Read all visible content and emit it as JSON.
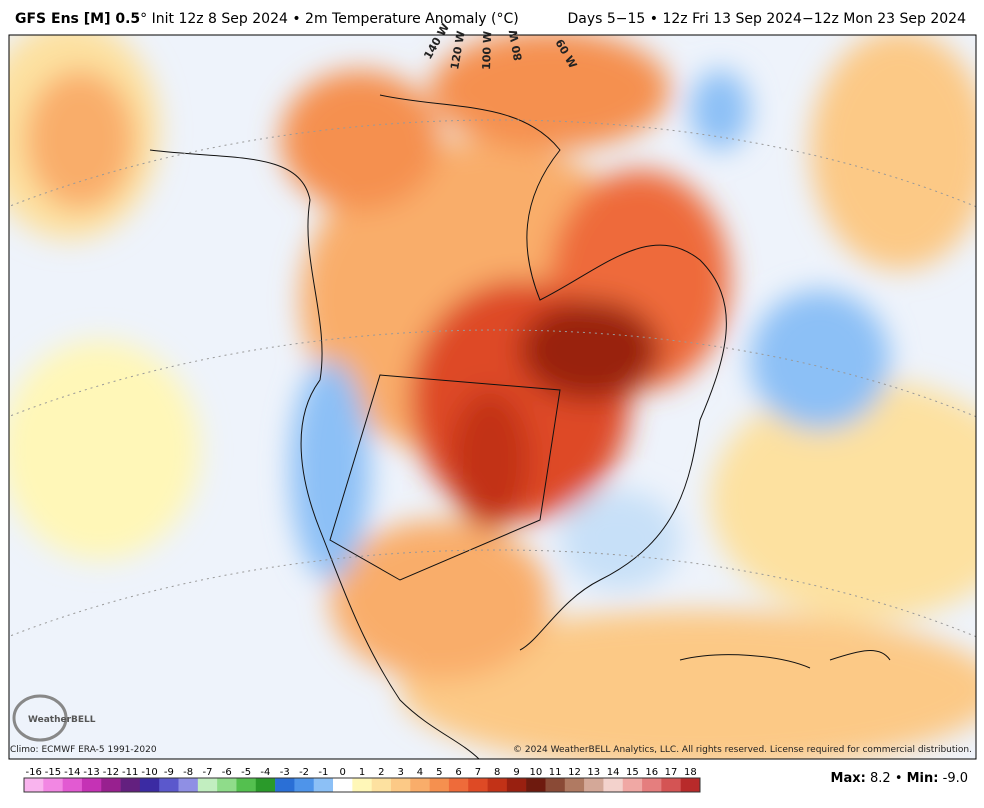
{
  "header": {
    "model": "GFS Ens [M] 0.5",
    "degree": "°",
    "init": "Init 12z 8 Sep 2024 • 2m Temperature Anomaly (°C)",
    "period": "Days 5−15 • 12z Fri 13 Sep 2024−12z Mon 23 Sep 2024"
  },
  "map": {
    "longitude_labels": [
      "140 W",
      "120 W",
      "100 W",
      "80 W",
      "60 W"
    ],
    "logo": "WeatherBELL"
  },
  "footer": {
    "climo": "Climo: ECMWF ERA-5 1991-2020",
    "copyright": "© 2024 WeatherBELL Analytics, LLC. All rights reserved. License required for commercial distribution.",
    "max_label": "Max:",
    "max": "8.2",
    "separator": "•",
    "min_label": "Min:",
    "min": "-9.0"
  },
  "colorbar": {
    "labels": [
      -16,
      -15,
      -14,
      -13,
      -12,
      -11,
      -10,
      -9,
      -8,
      -7,
      -6,
      -5,
      -4,
      -3,
      -2,
      -1,
      0,
      1,
      2,
      3,
      4,
      5,
      6,
      7,
      8,
      9,
      10,
      11,
      12,
      13,
      14,
      15,
      16,
      17,
      18
    ],
    "colors": [
      "#f9b4ee",
      "#f287e3",
      "#e25ad2",
      "#c532b5",
      "#98208f",
      "#63207f",
      "#3b2ba3",
      "#5b58cc",
      "#8f8fe4",
      "#c2eec0",
      "#8fdc8a",
      "#54c04f",
      "#2a9a2a",
      "#2a6fd6",
      "#4e94ea",
      "#8cc0f6",
      "#ffffff",
      "#fff7b8",
      "#fde1a0",
      "#fcc986",
      "#f9ad6a",
      "#f5904f",
      "#ee6b3a",
      "#de4a25",
      "#c23217",
      "#992010",
      "#6e1a0e",
      "#8a4a36",
      "#b07a62",
      "#d4a898",
      "#f3d2cc",
      "#f0a8a4",
      "#e57e7e",
      "#d45454",
      "#b82a2a"
    ]
  }
}
